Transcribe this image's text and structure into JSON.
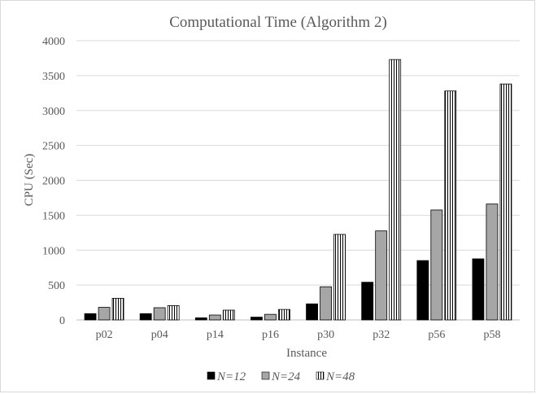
{
  "chart_data": {
    "type": "bar",
    "title": "Computational Time (Algorithm 2)",
    "xlabel": "Instance",
    "ylabel": "CPU (Sec)",
    "categories": [
      "p02",
      "p04",
      "p14",
      "p16",
      "p30",
      "p32",
      "p56",
      "p58"
    ],
    "ylim": [
      0,
      4000
    ],
    "yticks": [
      0,
      500,
      1000,
      1500,
      2000,
      2500,
      3000,
      3500,
      4000
    ],
    "grid": true,
    "legend_position": "bottom",
    "series": [
      {
        "name": "N=12",
        "style": "solid",
        "color": "#000000",
        "values": [
          90,
          90,
          30,
          40,
          230,
          540,
          850,
          875
        ]
      },
      {
        "name": "N=24",
        "style": "solid",
        "color": "#a6a6a6",
        "values": [
          180,
          175,
          70,
          80,
          475,
          1275,
          1575,
          1660
        ]
      },
      {
        "name": "N=48",
        "style": "vertical-stripes",
        "color": "#ffffff",
        "values": [
          310,
          205,
          140,
          150,
          1225,
          3730,
          3280,
          3380
        ]
      }
    ]
  }
}
